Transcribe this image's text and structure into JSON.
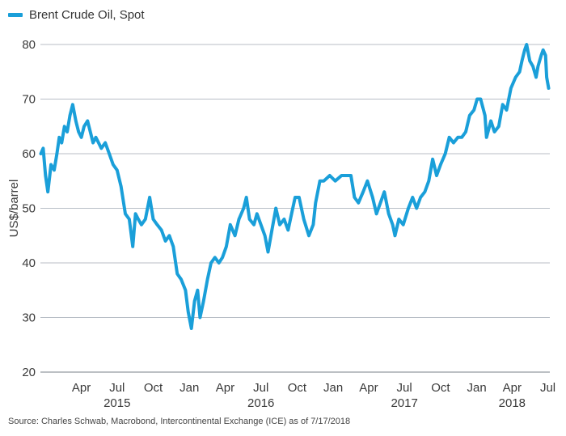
{
  "chart_data": {
    "type": "line",
    "title": "",
    "xlabel": "",
    "ylabel": "US$/barrel",
    "ylim": [
      20,
      80
    ],
    "y_ticks": [
      20,
      30,
      40,
      50,
      60,
      70,
      80
    ],
    "grid": true,
    "legend_position": "top-left",
    "months": [
      "Apr",
      "Jul",
      "Oct",
      "Jan",
      "Apr",
      "Jul",
      "Oct",
      "Jan",
      "Apr",
      "Jul",
      "Oct",
      "Jan",
      "Apr",
      "Jul"
    ],
    "years": [
      "2015",
      "2016",
      "2017",
      "2018"
    ],
    "series": [
      {
        "name": "Brent Crude Oil, Spot",
        "color": "#1a9fd9",
        "points": [
          [
            "2015-01-02",
            60
          ],
          [
            "2015-01-08",
            61
          ],
          [
            "2015-01-14",
            56
          ],
          [
            "2015-01-20",
            53
          ],
          [
            "2015-01-28",
            58
          ],
          [
            "2015-02-05",
            57
          ],
          [
            "2015-02-12",
            60
          ],
          [
            "2015-02-18",
            63
          ],
          [
            "2015-02-24",
            62
          ],
          [
            "2015-03-03",
            65
          ],
          [
            "2015-03-10",
            64
          ],
          [
            "2015-03-17",
            67
          ],
          [
            "2015-03-24",
            69
          ],
          [
            "2015-04-01",
            66
          ],
          [
            "2015-04-08",
            64
          ],
          [
            "2015-04-15",
            63
          ],
          [
            "2015-04-22",
            65
          ],
          [
            "2015-05-01",
            66
          ],
          [
            "2015-05-08",
            64
          ],
          [
            "2015-05-15",
            62
          ],
          [
            "2015-05-22",
            63
          ],
          [
            "2015-05-29",
            62
          ],
          [
            "2015-06-05",
            61
          ],
          [
            "2015-06-15",
            62
          ],
          [
            "2015-06-25",
            60
          ],
          [
            "2015-07-05",
            58
          ],
          [
            "2015-07-15",
            57
          ],
          [
            "2015-07-25",
            54
          ],
          [
            "2015-08-05",
            49
          ],
          [
            "2015-08-15",
            48
          ],
          [
            "2015-08-24",
            43
          ],
          [
            "2015-08-31",
            49
          ],
          [
            "2015-09-07",
            48
          ],
          [
            "2015-09-15",
            47
          ],
          [
            "2015-09-25",
            48
          ],
          [
            "2015-10-06",
            52
          ],
          [
            "2015-10-15",
            48
          ],
          [
            "2015-10-25",
            47
          ],
          [
            "2015-11-05",
            46
          ],
          [
            "2015-11-15",
            44
          ],
          [
            "2015-11-25",
            45
          ],
          [
            "2015-12-05",
            43
          ],
          [
            "2015-12-15",
            38
          ],
          [
            "2015-12-25",
            37
          ],
          [
            "2016-01-05",
            35
          ],
          [
            "2016-01-12",
            31
          ],
          [
            "2016-01-20",
            28
          ],
          [
            "2016-01-28",
            33
          ],
          [
            "2016-02-05",
            35
          ],
          [
            "2016-02-11",
            30
          ],
          [
            "2016-02-20",
            33
          ],
          [
            "2016-03-01",
            37
          ],
          [
            "2016-03-10",
            40
          ],
          [
            "2016-03-20",
            41
          ],
          [
            "2016-03-30",
            40
          ],
          [
            "2016-04-08",
            41
          ],
          [
            "2016-04-18",
            43
          ],
          [
            "2016-04-28",
            47
          ],
          [
            "2016-05-10",
            45
          ],
          [
            "2016-05-20",
            48
          ],
          [
            "2016-06-01",
            50
          ],
          [
            "2016-06-08",
            52
          ],
          [
            "2016-06-16",
            48
          ],
          [
            "2016-06-27",
            47
          ],
          [
            "2016-07-05",
            49
          ],
          [
            "2016-07-15",
            47
          ],
          [
            "2016-07-25",
            45
          ],
          [
            "2016-08-02",
            42
          ],
          [
            "2016-08-12",
            46
          ],
          [
            "2016-08-22",
            50
          ],
          [
            "2016-09-01",
            47
          ],
          [
            "2016-09-12",
            48
          ],
          [
            "2016-09-22",
            46
          ],
          [
            "2016-10-01",
            49
          ],
          [
            "2016-10-10",
            52
          ],
          [
            "2016-10-20",
            52
          ],
          [
            "2016-11-01",
            48
          ],
          [
            "2016-11-14",
            45
          ],
          [
            "2016-11-25",
            47
          ],
          [
            "2016-12-01",
            51
          ],
          [
            "2016-12-12",
            55
          ],
          [
            "2016-12-22",
            55
          ],
          [
            "2017-01-06",
            56
          ],
          [
            "2017-01-20",
            55
          ],
          [
            "2017-02-05",
            56
          ],
          [
            "2017-02-20",
            56
          ],
          [
            "2017-03-01",
            56
          ],
          [
            "2017-03-10",
            52
          ],
          [
            "2017-03-20",
            51
          ],
          [
            "2017-04-01",
            53
          ],
          [
            "2017-04-12",
            55
          ],
          [
            "2017-04-25",
            52
          ],
          [
            "2017-05-05",
            49
          ],
          [
            "2017-05-15",
            51
          ],
          [
            "2017-05-25",
            53
          ],
          [
            "2017-06-05",
            49
          ],
          [
            "2017-06-15",
            47
          ],
          [
            "2017-06-21",
            45
          ],
          [
            "2017-07-01",
            48
          ],
          [
            "2017-07-12",
            47
          ],
          [
            "2017-07-25",
            50
          ],
          [
            "2017-08-05",
            52
          ],
          [
            "2017-08-15",
            50
          ],
          [
            "2017-08-25",
            52
          ],
          [
            "2017-09-05",
            53
          ],
          [
            "2017-09-15",
            55
          ],
          [
            "2017-09-25",
            59
          ],
          [
            "2017-10-05",
            56
          ],
          [
            "2017-10-15",
            58
          ],
          [
            "2017-10-27",
            60
          ],
          [
            "2017-11-06",
            63
          ],
          [
            "2017-11-17",
            62
          ],
          [
            "2017-11-28",
            63
          ],
          [
            "2017-12-08",
            63
          ],
          [
            "2017-12-18",
            64
          ],
          [
            "2017-12-28",
            67
          ],
          [
            "2018-01-08",
            68
          ],
          [
            "2018-01-16",
            70
          ],
          [
            "2018-01-25",
            70
          ],
          [
            "2018-02-05",
            67
          ],
          [
            "2018-02-09",
            63
          ],
          [
            "2018-02-20",
            66
          ],
          [
            "2018-03-01",
            64
          ],
          [
            "2018-03-12",
            65
          ],
          [
            "2018-03-22",
            69
          ],
          [
            "2018-04-01",
            68
          ],
          [
            "2018-04-12",
            72
          ],
          [
            "2018-04-24",
            74
          ],
          [
            "2018-05-04",
            75
          ],
          [
            "2018-05-10",
            77
          ],
          [
            "2018-05-17",
            79
          ],
          [
            "2018-05-22",
            80
          ],
          [
            "2018-05-30",
            77
          ],
          [
            "2018-06-07",
            76
          ],
          [
            "2018-06-15",
            74
          ],
          [
            "2018-06-20",
            76
          ],
          [
            "2018-06-28",
            78
          ],
          [
            "2018-07-03",
            79
          ],
          [
            "2018-07-09",
            78
          ],
          [
            "2018-07-12",
            74
          ],
          [
            "2018-07-17",
            72
          ]
        ]
      }
    ]
  },
  "legend": {
    "label": "Brent Crude Oil, Spot",
    "color": "#1a9fd9"
  },
  "source_note": "Source: Charles Schwab, Macrobond, Intercontinental Exchange (ICE) as of 7/17/2018"
}
